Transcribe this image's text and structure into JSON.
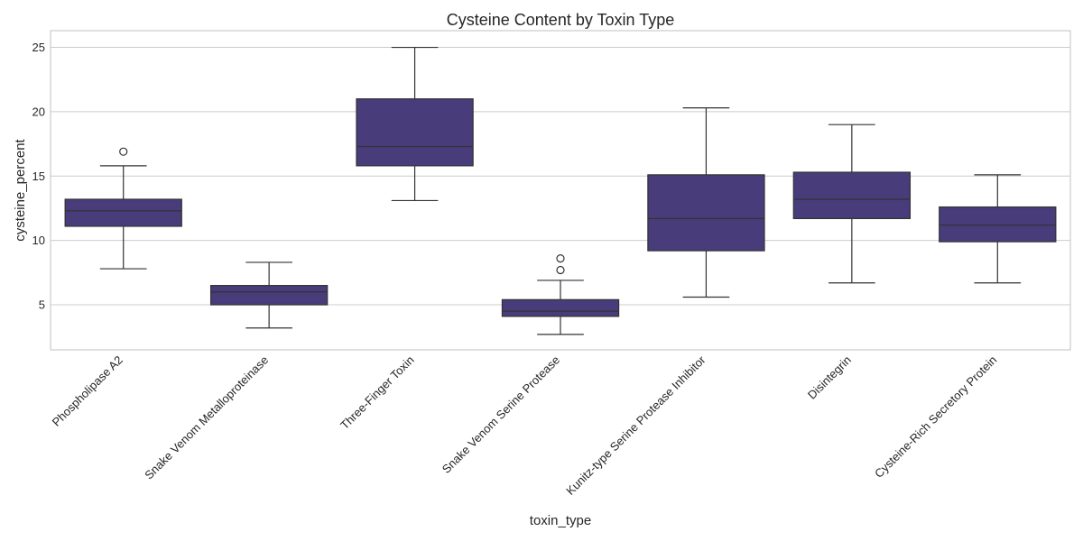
{
  "chart_data": {
    "type": "box",
    "title": "Cysteine Content by Toxin Type",
    "xlabel": "toxin_type",
    "ylabel": "cysteine_percent",
    "ylim": [
      1.5,
      26.3
    ],
    "yticks": [
      5,
      10,
      15,
      20,
      25
    ],
    "grid": true,
    "box_color": "#483c7a",
    "line_color": "#333333",
    "categories": [
      "Phospholipase A2",
      "Snake Venom Metalloproteinase",
      "Three-Finger Toxin",
      "Snake Venom Serine Protease",
      "Kunitz-type Serine Protease Inhibitor",
      "Disintegrin",
      "Cysteine-Rich Secretory Protein"
    ],
    "boxes": [
      {
        "whisker_low": 7.8,
        "q1": 11.1,
        "median": 12.3,
        "q3": 13.2,
        "whisker_high": 15.8,
        "outliers": [
          16.9
        ]
      },
      {
        "whisker_low": 3.2,
        "q1": 5.0,
        "median": 6.0,
        "q3": 6.5,
        "whisker_high": 8.3,
        "outliers": []
      },
      {
        "whisker_low": 13.1,
        "q1": 15.8,
        "median": 17.3,
        "q3": 21.0,
        "whisker_high": 25.0,
        "outliers": []
      },
      {
        "whisker_low": 2.7,
        "q1": 4.1,
        "median": 4.5,
        "q3": 5.4,
        "whisker_high": 6.9,
        "outliers": [
          7.7,
          8.6
        ]
      },
      {
        "whisker_low": 5.6,
        "q1": 9.2,
        "median": 11.7,
        "q3": 15.1,
        "whisker_high": 20.3,
        "outliers": []
      },
      {
        "whisker_low": 6.7,
        "q1": 11.7,
        "median": 13.2,
        "q3": 15.3,
        "whisker_high": 19.0,
        "outliers": []
      },
      {
        "whisker_low": 6.7,
        "q1": 9.9,
        "median": 11.2,
        "q3": 12.6,
        "whisker_high": 15.1,
        "outliers": []
      }
    ]
  }
}
